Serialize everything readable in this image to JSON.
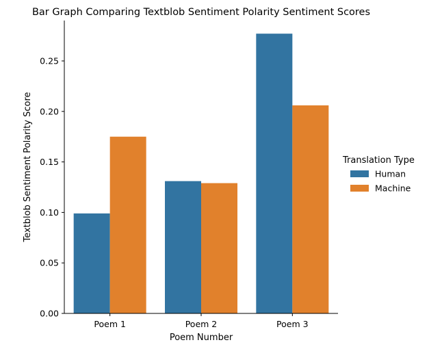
{
  "chart_data": {
    "type": "bar",
    "title": "Bar Graph Comparing Textblob Sentiment Polarity Sentiment Scores",
    "xlabel": "Poem Number",
    "ylabel": "Textblob Sentiment Polarity Score",
    "categories": [
      "Poem 1",
      "Poem 2",
      "Poem 3"
    ],
    "series": [
      {
        "name": "Human",
        "values": [
          0.099,
          0.131,
          0.277
        ]
      },
      {
        "name": "Machine",
        "values": [
          0.175,
          0.129,
          0.206
        ]
      }
    ],
    "ylim": [
      0,
      0.29
    ],
    "yticks": [
      0.0,
      0.05,
      0.1,
      0.15,
      0.2,
      0.25
    ],
    "ytick_labels": [
      "0.00",
      "0.05",
      "0.10",
      "0.15",
      "0.20",
      "0.25"
    ],
    "grid": false,
    "legend": {
      "title": "Translation Type",
      "placement": "outside-right"
    },
    "colors": {
      "Human": "#3274a1",
      "Machine": "#e1812c"
    }
  }
}
